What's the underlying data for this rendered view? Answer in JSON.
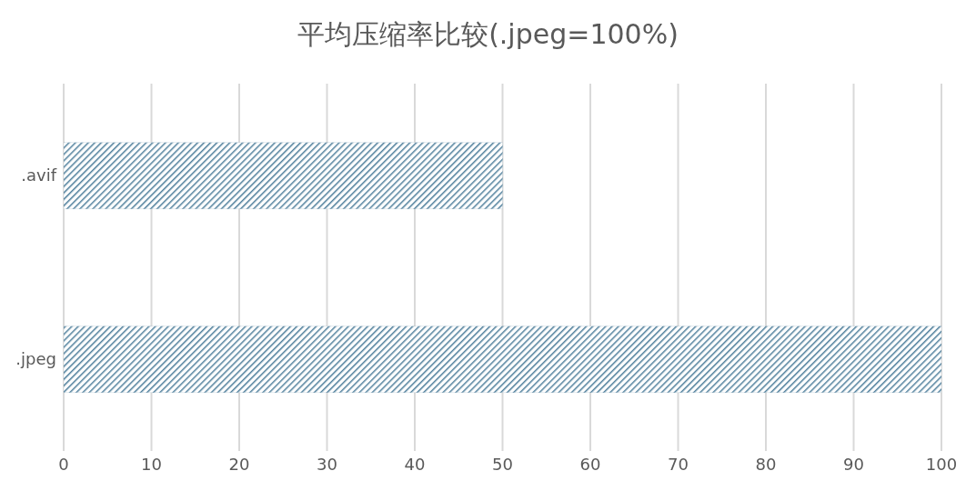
{
  "chart_data": {
    "type": "bar",
    "orientation": "horizontal",
    "title": "平均压缩率比较(.jpeg=100%)",
    "categories": [
      ".avif",
      ".jpeg"
    ],
    "series": [
      {
        "color": "#4f7f9c",
        "values": [
          50,
          100
        ]
      }
    ],
    "xlim": [
      0,
      100
    ],
    "xticks": [
      0,
      10,
      20,
      30,
      40,
      50,
      60,
      70,
      80,
      90,
      100
    ],
    "grid": "x"
  }
}
